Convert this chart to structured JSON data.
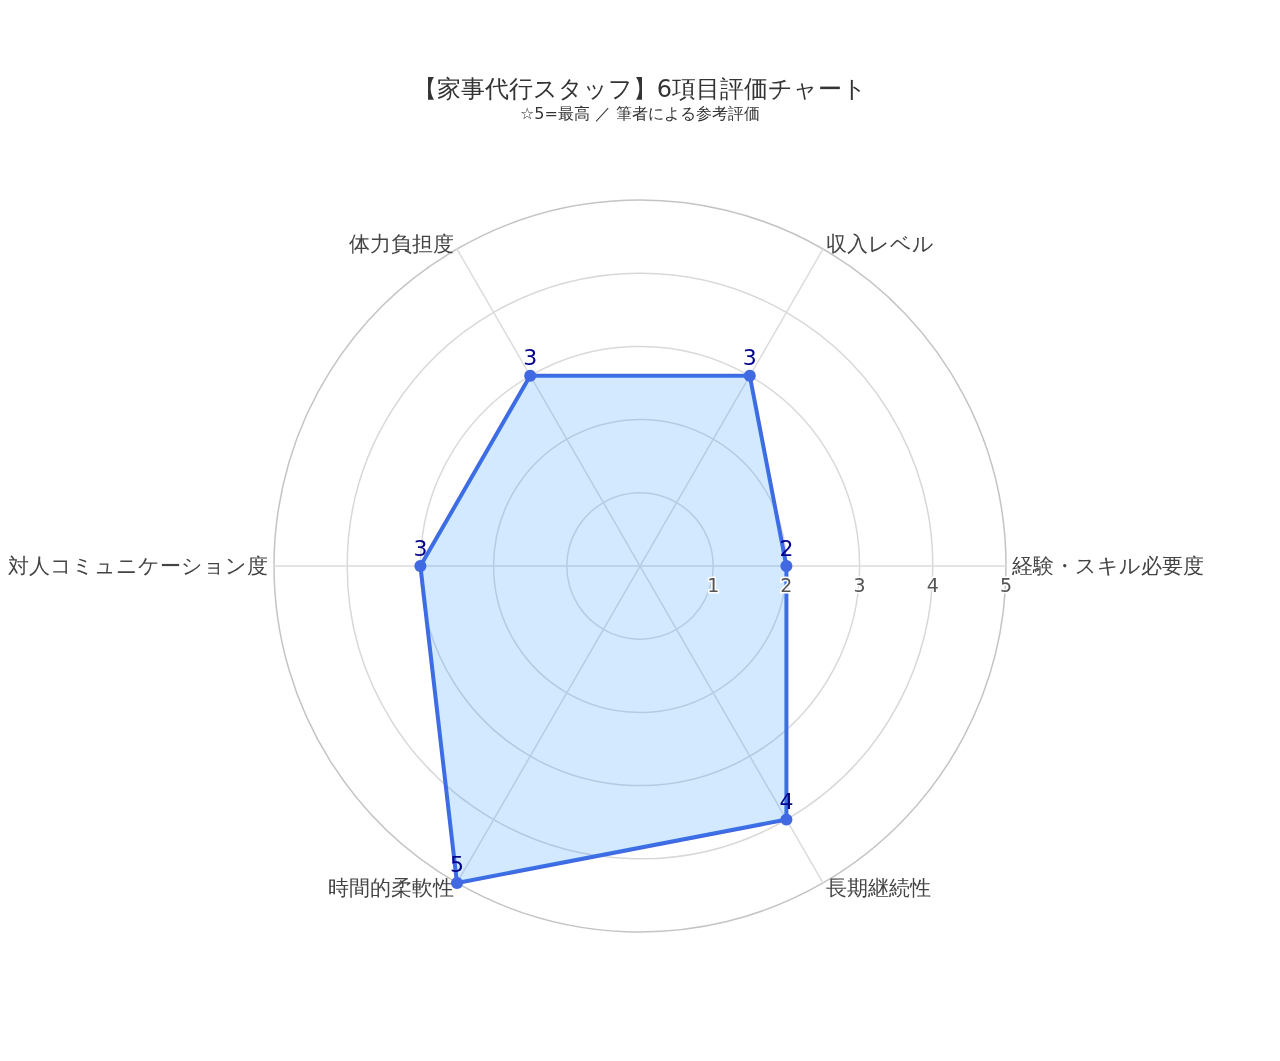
{
  "chart_data": {
    "type": "radar",
    "title": "【家事代行スタッフ】6項目評価チャート",
    "subtitle": "☆5=最高 ／ 筆者による参考評価",
    "categories": [
      "収入レベル",
      "経験・スキル必要度",
      "長期継続性",
      "時間的柔軟性",
      "対人コミュニケーション度",
      "体力負担度"
    ],
    "series": [
      {
        "color": "#4169e1",
        "values": [
          3,
          2,
          4,
          5,
          3,
          3
        ]
      }
    ],
    "ylim": [
      0,
      5
    ],
    "yticks": [
      1,
      2,
      3,
      4,
      5
    ],
    "grid": true,
    "data_labels": true,
    "marker": "circle",
    "line_style": "solid"
  }
}
